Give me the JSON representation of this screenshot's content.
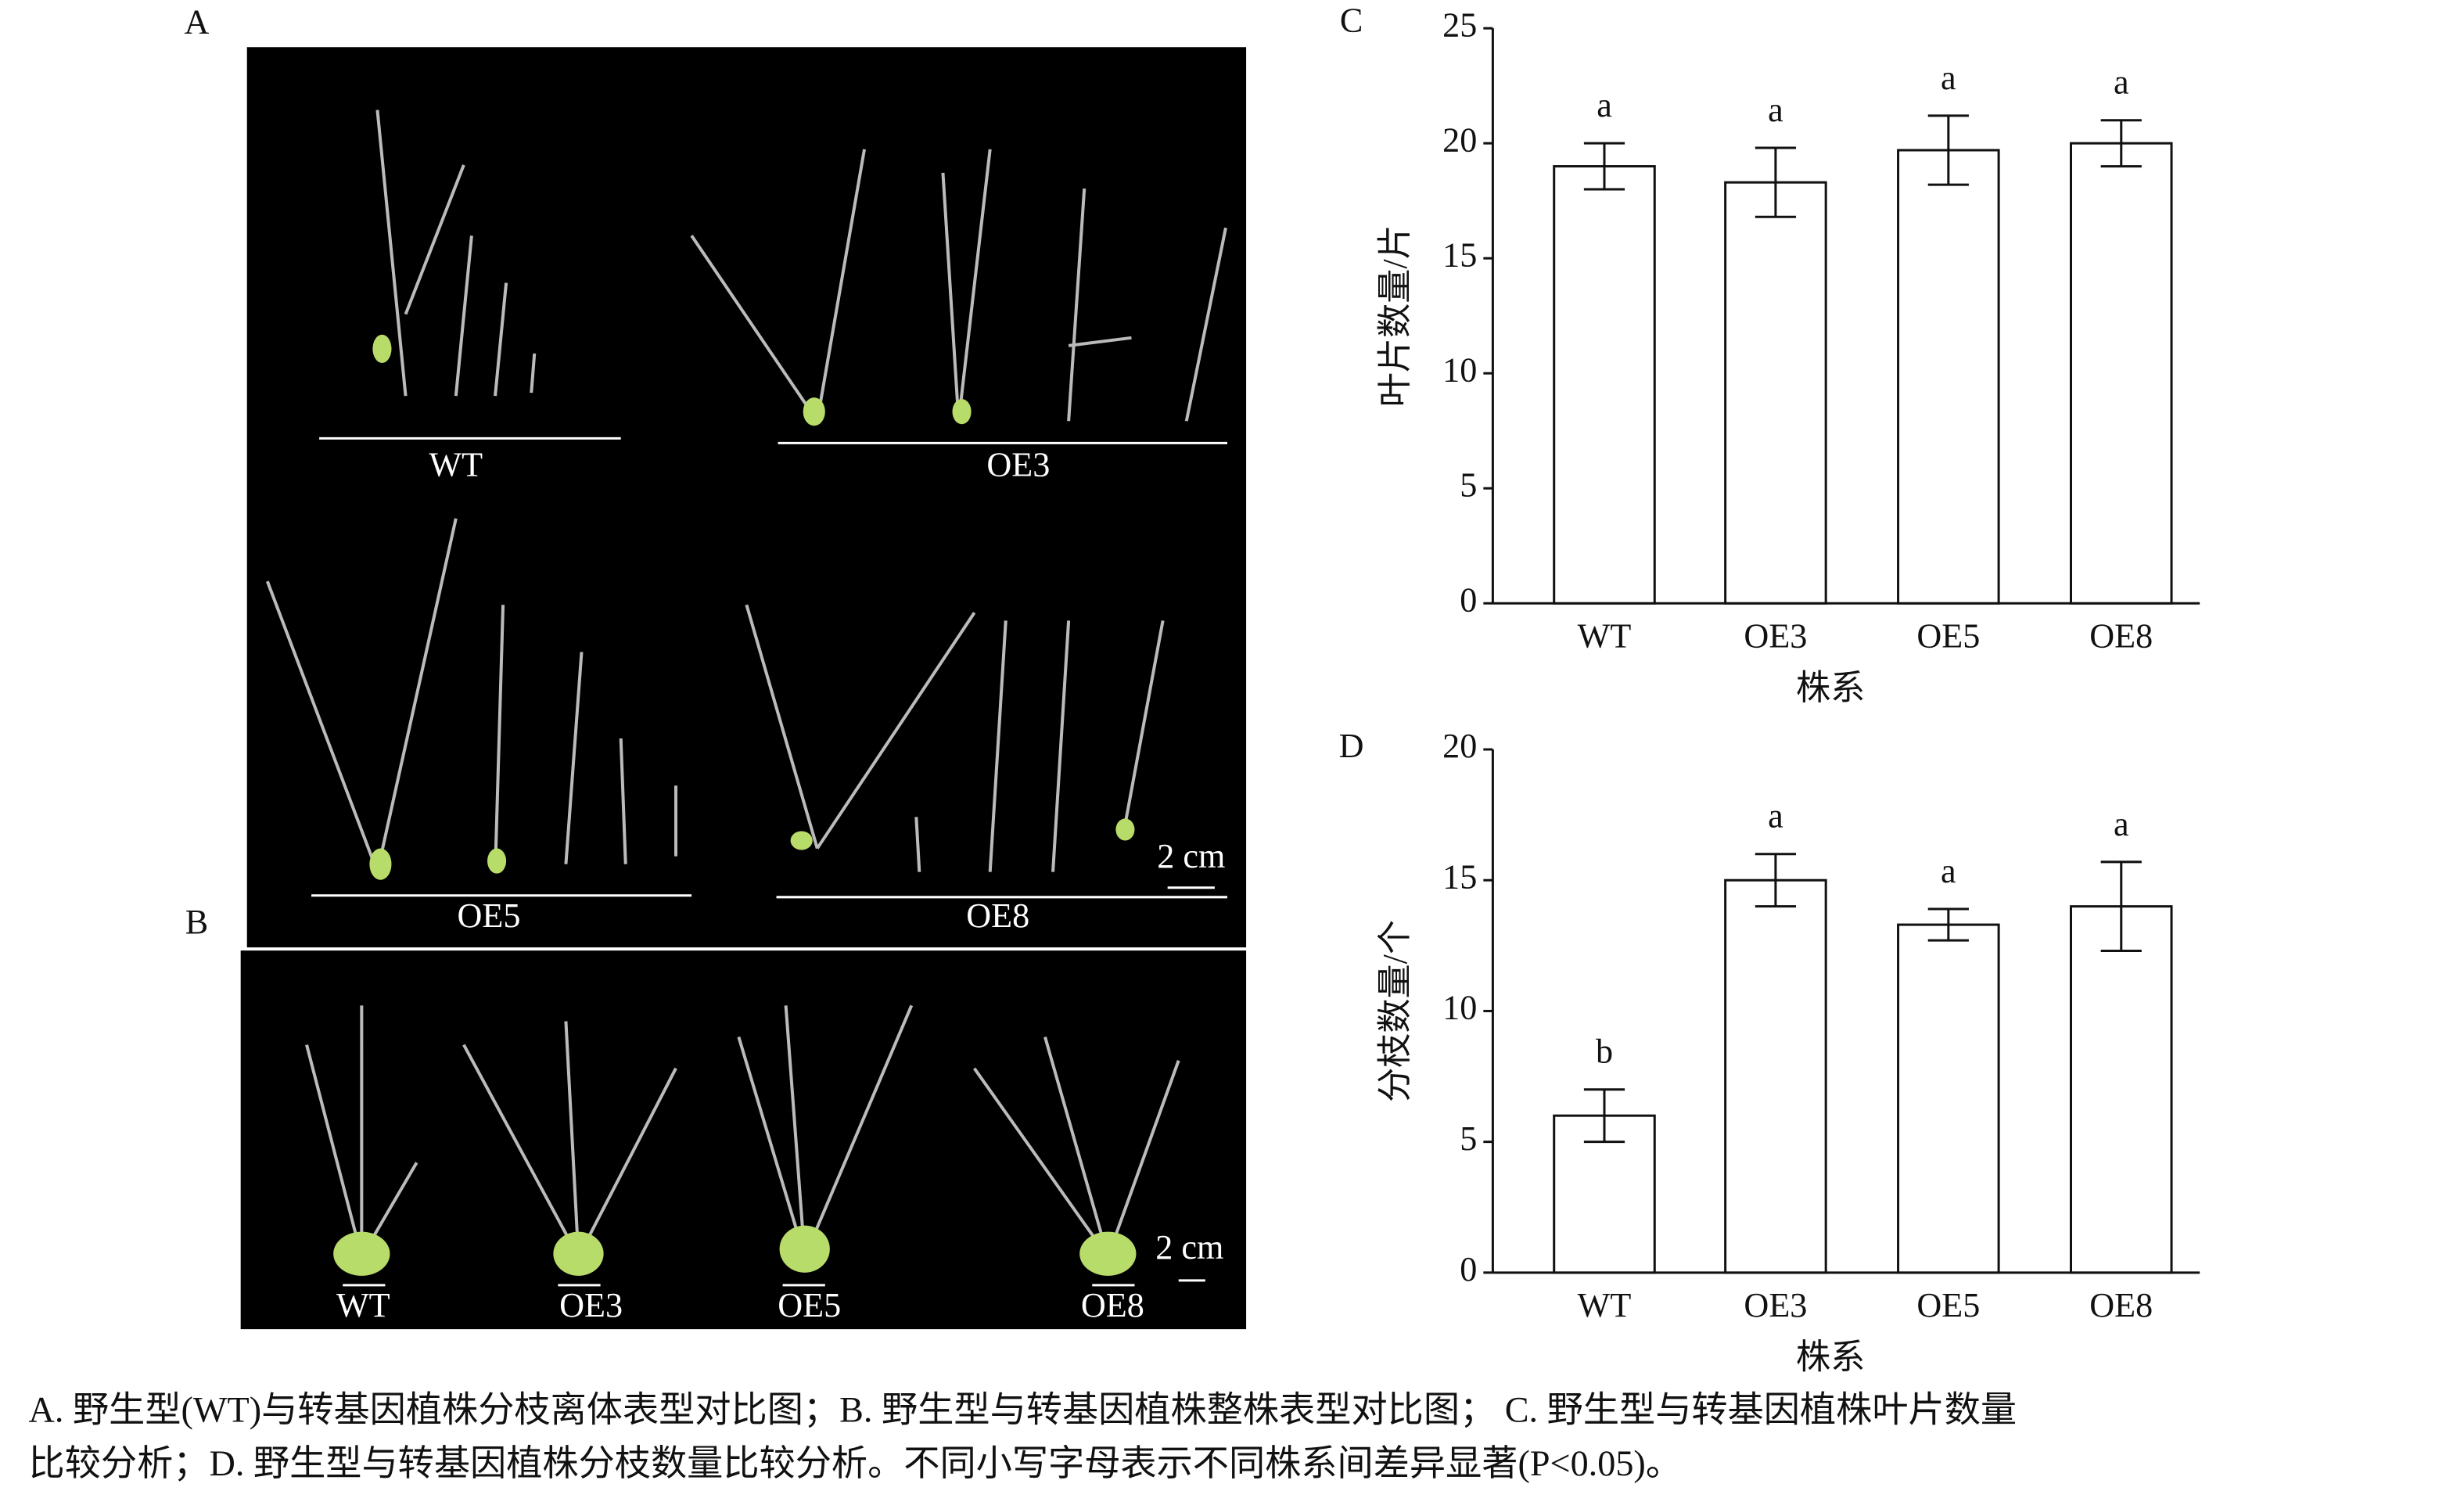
{
  "figure": {
    "panel_labels": [
      "A",
      "B",
      "C",
      "D"
    ],
    "photo_a_labels": [
      "WT",
      "OE3",
      "OE5",
      "OE8"
    ],
    "photo_b_labels": [
      "WT",
      "OE3",
      "OE5",
      "OE8"
    ],
    "scale_bar": "2 cm"
  },
  "caption": [
    "A. 野生型(WT)与转基因植株分枝离体表型对比图；B. 野生型与转基因植株整株表型对比图；  C. 野生型与转基因植株叶片数量",
    "比较分析；D. 野生型与转基因植株分枝数量比较分析。不同小写字母表示不同株系间差异显著(P<0.05)。"
  ],
  "chart_data": [
    {
      "type": "bar",
      "categories": [
        "WT",
        "OE3",
        "OE5",
        "OE8"
      ],
      "values": [
        19,
        18.3,
        19.7,
        20
      ],
      "errors": [
        1,
        1.5,
        1.5,
        1
      ],
      "annotations": [
        "a",
        "a",
        "a",
        "a"
      ],
      "color": "#ffffff",
      "ylim": [
        0,
        25
      ],
      "yticks": [
        0,
        5,
        10,
        15,
        20,
        25
      ],
      "ylabel": "叶片数量/片",
      "xlabel": "株系"
    },
    {
      "type": "bar",
      "categories": [
        "WT",
        "OE3",
        "OE5",
        "OE8"
      ],
      "values": [
        6,
        15,
        13.3,
        14
      ],
      "errors": [
        1,
        1,
        0.6,
        1.7
      ],
      "annotations": [
        "b",
        "a",
        "a",
        "a"
      ],
      "color": "#ffffff",
      "ylim": [
        0,
        20
      ],
      "yticks": [
        0,
        5,
        10,
        15,
        20
      ],
      "ylabel": "分枝数量/个",
      "xlabel": "株系"
    }
  ]
}
